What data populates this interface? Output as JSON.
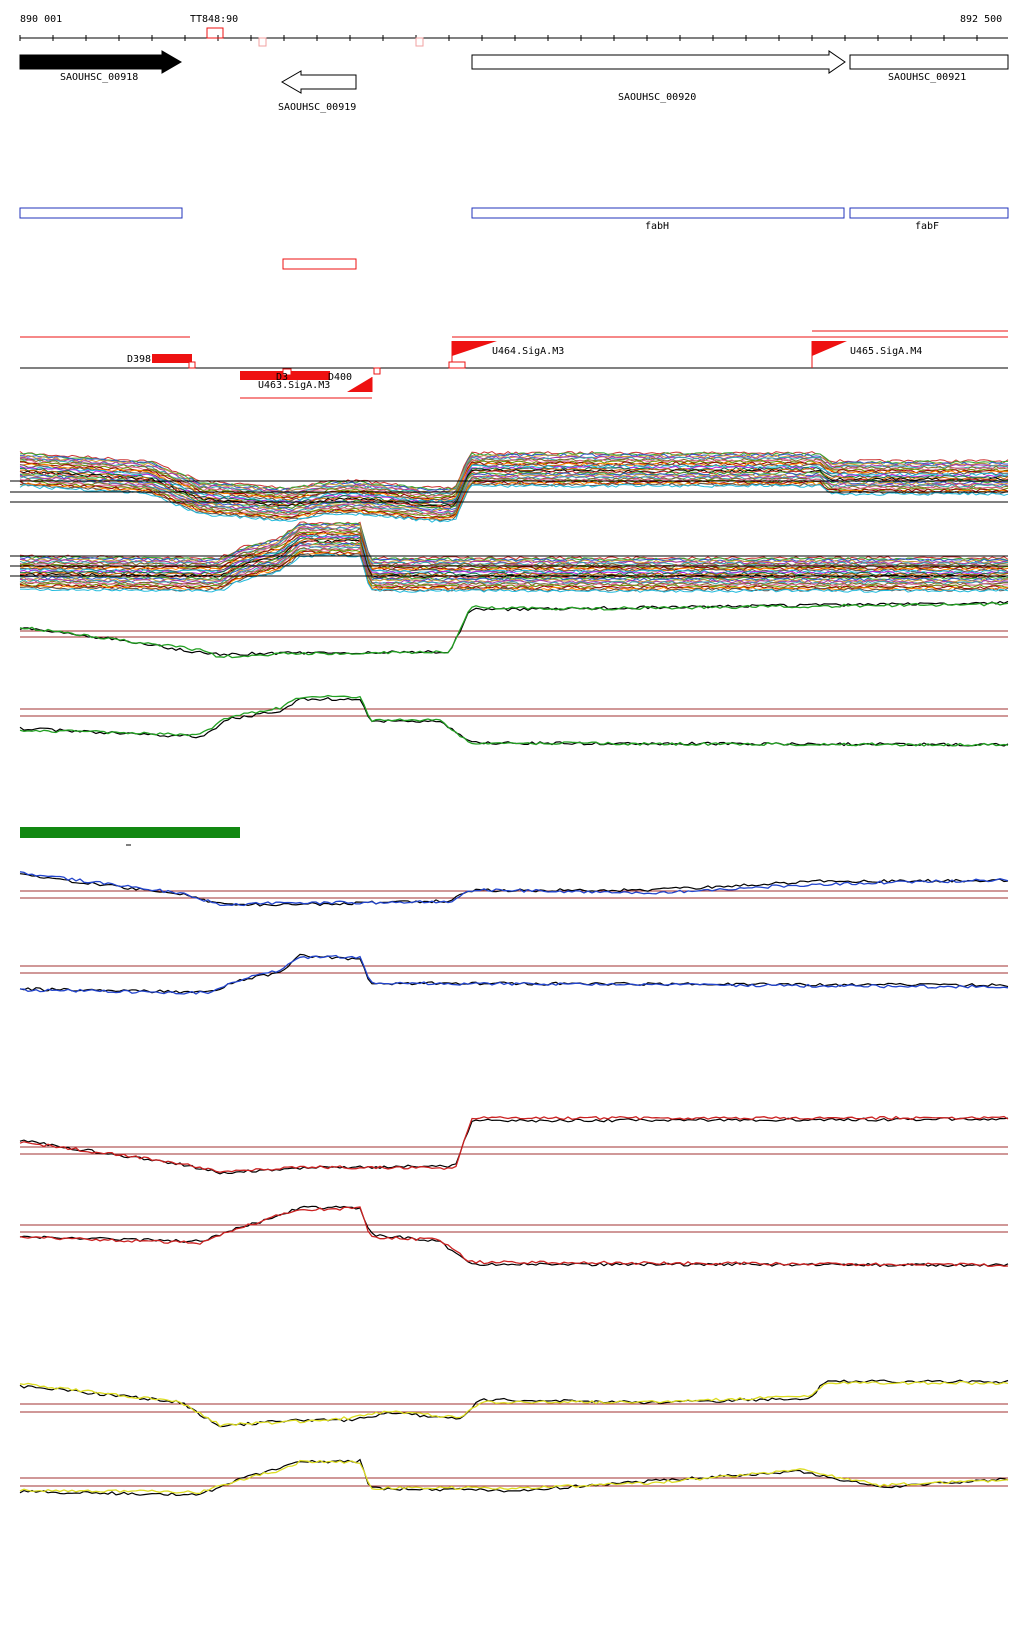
{
  "ruler": {
    "start_label": "890 001",
    "end_label": "892 500",
    "marker_label": "TT848:90"
  },
  "genes": [
    {
      "id": "SAOUHSC_00918",
      "label": "SAOUHSC_00918",
      "strand": "+",
      "style": "filled"
    },
    {
      "id": "SAOUHSC_00919",
      "label": "SAOUHSC_00919",
      "strand": "-",
      "style": "open"
    },
    {
      "id": "SAOUHSC_00920",
      "label": "SAOUHSC_00920",
      "strand": "+",
      "style": "open"
    },
    {
      "id": "SAOUHSC_00921",
      "label": "SAOUHSC_00921",
      "strand": "+",
      "style": "open"
    }
  ],
  "annotations": [
    {
      "label": "",
      "color": "#2233bb"
    },
    {
      "label": "fabH",
      "color": "#2233bb"
    },
    {
      "label": "fabF",
      "color": "#2233bb"
    }
  ],
  "features": [
    {
      "label": "D398"
    },
    {
      "label": "D3"
    },
    {
      "label": "D400"
    },
    {
      "label": "U463.SigA.M3"
    },
    {
      "label": "U464.SigA.M3"
    },
    {
      "label": "U465.SigA.M4"
    }
  ],
  "colors": {
    "feature_red": "#ee1111",
    "annotation_blue": "#2233bb",
    "threshold_line": "#a03030",
    "green_series": "#22a022",
    "blue_series": "#2244cc",
    "red_series": "#cc2222",
    "yellow_series": "#dddd22",
    "green_bar": "#118811"
  },
  "tracks": [
    {
      "name": "expression-track-all-plus",
      "kind": "multi",
      "series_color": "mixed"
    },
    {
      "name": "expression-track-all-minus",
      "kind": "multi",
      "series_color": "mixed"
    },
    {
      "name": "expression-track-green-plus",
      "series_color": "#22a022"
    },
    {
      "name": "expression-track-green-minus",
      "series_color": "#22a022"
    },
    {
      "name": "expression-track-blue-plus",
      "series_color": "#2244cc"
    },
    {
      "name": "expression-track-blue-minus",
      "series_color": "#2244cc"
    },
    {
      "name": "expression-track-red-plus",
      "series_color": "#cc2222"
    },
    {
      "name": "expression-track-red-minus",
      "series_color": "#cc2222"
    },
    {
      "name": "expression-track-yellow-plus",
      "series_color": "#dddd22"
    },
    {
      "name": "expression-track-yellow-minus",
      "series_color": "#dddd22"
    }
  ]
}
